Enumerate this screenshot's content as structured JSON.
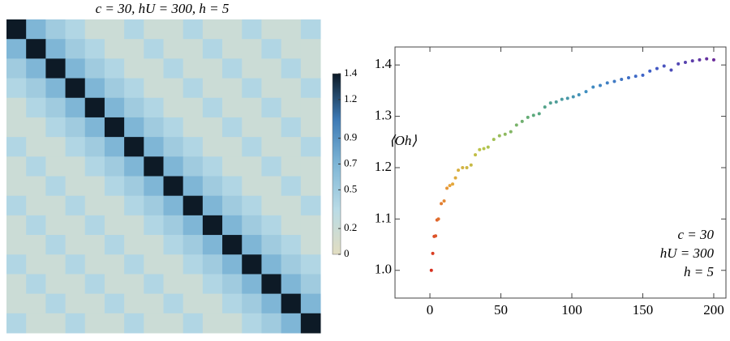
{
  "chart_data": [
    {
      "type": "heatmap",
      "title": "c = 30, hU = 300, h = 5",
      "z": [
        [
          1.4,
          0.7,
          0.5,
          0.4,
          0.2,
          0.2,
          0.4,
          0.2,
          0.2,
          0.4,
          0.2,
          0.2,
          0.4,
          0.2,
          0.2,
          0.4
        ],
        [
          0.7,
          1.4,
          0.7,
          0.5,
          0.4,
          0.2,
          0.2,
          0.4,
          0.2,
          0.2,
          0.4,
          0.2,
          0.2,
          0.4,
          0.2,
          0.2
        ],
        [
          0.5,
          0.7,
          1.4,
          0.7,
          0.5,
          0.4,
          0.2,
          0.2,
          0.4,
          0.2,
          0.2,
          0.4,
          0.2,
          0.2,
          0.4,
          0.2
        ],
        [
          0.4,
          0.5,
          0.7,
          1.4,
          0.7,
          0.5,
          0.4,
          0.2,
          0.2,
          0.4,
          0.2,
          0.2,
          0.4,
          0.2,
          0.2,
          0.4
        ],
        [
          0.2,
          0.4,
          0.5,
          0.7,
          1.4,
          0.7,
          0.5,
          0.4,
          0.2,
          0.2,
          0.4,
          0.2,
          0.2,
          0.4,
          0.2,
          0.2
        ],
        [
          0.2,
          0.2,
          0.4,
          0.5,
          0.7,
          1.4,
          0.7,
          0.5,
          0.4,
          0.2,
          0.2,
          0.4,
          0.2,
          0.2,
          0.4,
          0.2
        ],
        [
          0.4,
          0.2,
          0.2,
          0.4,
          0.5,
          0.7,
          1.4,
          0.7,
          0.5,
          0.4,
          0.2,
          0.2,
          0.4,
          0.2,
          0.2,
          0.4
        ],
        [
          0.2,
          0.4,
          0.2,
          0.2,
          0.4,
          0.5,
          0.7,
          1.4,
          0.7,
          0.5,
          0.4,
          0.2,
          0.2,
          0.4,
          0.2,
          0.2
        ],
        [
          0.2,
          0.2,
          0.4,
          0.2,
          0.2,
          0.4,
          0.5,
          0.7,
          1.4,
          0.7,
          0.5,
          0.4,
          0.2,
          0.2,
          0.4,
          0.2
        ],
        [
          0.4,
          0.2,
          0.2,
          0.4,
          0.2,
          0.2,
          0.4,
          0.5,
          0.7,
          1.4,
          0.7,
          0.5,
          0.4,
          0.2,
          0.2,
          0.4
        ],
        [
          0.2,
          0.4,
          0.2,
          0.2,
          0.4,
          0.2,
          0.2,
          0.4,
          0.5,
          0.7,
          1.4,
          0.7,
          0.5,
          0.4,
          0.2,
          0.2
        ],
        [
          0.2,
          0.2,
          0.4,
          0.2,
          0.2,
          0.4,
          0.2,
          0.2,
          0.4,
          0.5,
          0.7,
          1.4,
          0.7,
          0.5,
          0.4,
          0.2
        ],
        [
          0.4,
          0.2,
          0.2,
          0.4,
          0.2,
          0.2,
          0.4,
          0.2,
          0.2,
          0.4,
          0.5,
          0.7,
          1.4,
          0.7,
          0.5,
          0.4
        ],
        [
          0.2,
          0.4,
          0.2,
          0.2,
          0.4,
          0.2,
          0.2,
          0.4,
          0.2,
          0.2,
          0.4,
          0.5,
          0.7,
          1.4,
          0.7,
          0.5
        ],
        [
          0.2,
          0.2,
          0.4,
          0.2,
          0.2,
          0.4,
          0.2,
          0.2,
          0.4,
          0.2,
          0.2,
          0.4,
          0.5,
          0.7,
          1.4,
          0.7
        ],
        [
          0.4,
          0.2,
          0.2,
          0.4,
          0.2,
          0.2,
          0.4,
          0.2,
          0.2,
          0.4,
          0.2,
          0.2,
          0.4,
          0.5,
          0.7,
          1.4
        ]
      ],
      "zlim": [
        0,
        1.4
      ],
      "colorbar_ticks": [
        0,
        0.2,
        0.5,
        0.7,
        0.9,
        1.2,
        1.4
      ],
      "colors": [
        "#e2ddc1",
        "#b9dbe6",
        "#7fb6d6",
        "#3c79b4",
        "#0d1a26"
      ]
    },
    {
      "type": "scatter",
      "ylabel": "⟨Oh⟩",
      "x": [
        1,
        2,
        3,
        4,
        5,
        6,
        8,
        10,
        12,
        14,
        16,
        18,
        20,
        23,
        26,
        29,
        32,
        35,
        38,
        41,
        45,
        49,
        53,
        57,
        61,
        65,
        69,
        73,
        77,
        81,
        85,
        89,
        93,
        97,
        101,
        105,
        110,
        115,
        120,
        125,
        130,
        135,
        140,
        145,
        150,
        155,
        160,
        165,
        170,
        175,
        180,
        185,
        190,
        195,
        200
      ],
      "values": [
        1.0,
        1.033,
        1.066,
        1.067,
        1.098,
        1.1,
        1.13,
        1.135,
        1.16,
        1.165,
        1.168,
        1.18,
        1.195,
        1.2,
        1.2,
        1.205,
        1.225,
        1.235,
        1.237,
        1.24,
        1.255,
        1.262,
        1.265,
        1.27,
        1.283,
        1.29,
        1.298,
        1.302,
        1.305,
        1.318,
        1.326,
        1.328,
        1.333,
        1.335,
        1.338,
        1.342,
        1.348,
        1.357,
        1.36,
        1.365,
        1.368,
        1.372,
        1.375,
        1.378,
        1.38,
        1.388,
        1.393,
        1.398,
        1.39,
        1.402,
        1.405,
        1.408,
        1.41,
        1.412,
        1.41
      ],
      "xlim": [
        -24.6,
        208.6
      ],
      "ylim": [
        0.946,
        1.435
      ],
      "xticks": [
        0,
        50,
        100,
        150,
        200
      ],
      "yticks": [
        {
          "value": 1.0,
          "label": "1.0"
        },
        1.1,
        1.2,
        1.3,
        1.4
      ],
      "colors": [
        "#d7301f",
        "#e8a33a",
        "#b7c64a",
        "#5aa97a",
        "#3f8fc0",
        "#3f5fc8",
        "#6a2a9a"
      ],
      "annotations": [
        "c = 30",
        "hU = 300",
        "h = 5"
      ]
    }
  ]
}
